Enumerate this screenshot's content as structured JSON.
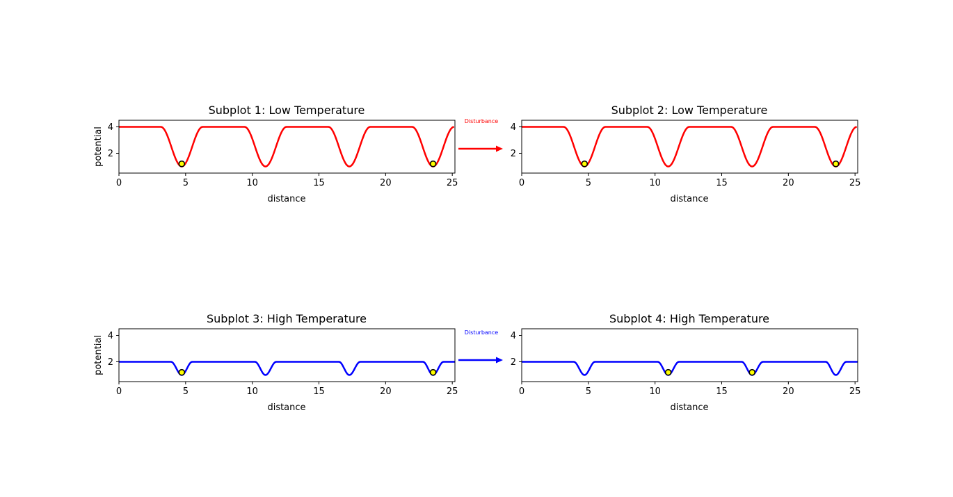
{
  "colors": {
    "low": "#ff0000",
    "high": "#0000ff",
    "marker_fill": "#ffff00",
    "marker_edge": "#000000"
  },
  "chart_data": [
    {
      "type": "line",
      "title": "Subplot 1: Low Temperature",
      "xlabel": "distance",
      "ylabel": "potential",
      "xlim": [
        0,
        25.2
      ],
      "ylim": [
        0.5,
        4.5
      ],
      "xticks": [
        "0",
        "5",
        "10",
        "15",
        "20",
        "25"
      ],
      "yticks": [
        "2",
        "4"
      ],
      "series": [
        {
          "color": "#ff0000",
          "x": [
            0,
            3.14,
            4.71,
            6.28,
            9.42,
            10.99,
            12.57,
            15.71,
            17.28,
            18.85,
            21.99,
            23.56,
            25.13
          ],
          "y": [
            4,
            4,
            1,
            4,
            4,
            1,
            4,
            4,
            1,
            4,
            4,
            1,
            4
          ],
          "shape": "cosine wells of depth 3 between flat plateaus"
        }
      ],
      "points": {
        "x": [
          4.71,
          23.56
        ],
        "y": [
          1.2,
          1.2
        ]
      },
      "grid": false
    },
    {
      "type": "line",
      "title": "Subplot 2: Low Temperature",
      "xlabel": "distance",
      "ylabel": "",
      "xlim": [
        0,
        25.2
      ],
      "ylim": [
        0.5,
        4.5
      ],
      "xticks": [
        "0",
        "5",
        "10",
        "15",
        "20",
        "25"
      ],
      "yticks": [
        "2",
        "4"
      ],
      "series": [
        {
          "color": "#ff0000",
          "x": [
            0,
            3.14,
            4.71,
            6.28,
            9.42,
            10.99,
            12.57,
            15.71,
            17.28,
            18.85,
            21.99,
            23.56,
            25.13
          ],
          "y": [
            4,
            4,
            1,
            4,
            4,
            1,
            4,
            4,
            1,
            4,
            4,
            1,
            4
          ],
          "shape": "cosine wells of depth 3 between flat plateaus"
        }
      ],
      "points": {
        "x": [
          4.71,
          23.56
        ],
        "y": [
          1.2,
          1.2
        ]
      },
      "grid": false
    },
    {
      "type": "line",
      "title": "Subplot 3: High Temperature",
      "xlabel": "distance",
      "ylabel": "potential",
      "xlim": [
        0,
        25.2
      ],
      "ylim": [
        0.5,
        4.5
      ],
      "xticks": [
        "0",
        "5",
        "10",
        "15",
        "20",
        "25"
      ],
      "yticks": [
        "2",
        "4"
      ],
      "series": [
        {
          "color": "#0000ff",
          "x": [
            0,
            3.9,
            4.71,
            5.5,
            10.2,
            10.99,
            11.8,
            16.5,
            17.28,
            18.1,
            22.8,
            23.56,
            24.35,
            25.2
          ],
          "y": [
            2,
            2,
            1,
            2,
            2,
            1,
            2,
            2,
            1,
            2,
            2,
            1,
            2,
            2
          ],
          "shape": "narrow cosine wells of depth 1 between flat plateaus"
        }
      ],
      "points": {
        "x": [
          4.71,
          23.56
        ],
        "y": [
          1.2,
          1.2
        ]
      },
      "grid": false
    },
    {
      "type": "line",
      "title": "Subplot 4: High Temperature",
      "xlabel": "distance",
      "ylabel": "",
      "xlim": [
        0,
        25.2
      ],
      "ylim": [
        0.5,
        4.5
      ],
      "xticks": [
        "0",
        "5",
        "10",
        "15",
        "20",
        "25"
      ],
      "yticks": [
        "2",
        "4"
      ],
      "series": [
        {
          "color": "#0000ff",
          "x": [
            0,
            3.9,
            4.71,
            5.5,
            10.2,
            10.99,
            11.8,
            16.5,
            17.28,
            18.1,
            22.8,
            23.56,
            24.35,
            25.2
          ],
          "y": [
            2,
            2,
            1,
            2,
            2,
            1,
            2,
            2,
            1,
            2,
            2,
            1,
            2,
            2
          ],
          "shape": "narrow cosine wells of depth 1 between flat plateaus"
        }
      ],
      "points": {
        "x": [
          10.99,
          17.28
        ],
        "y": [
          1.2,
          1.2
        ]
      },
      "grid": false
    }
  ],
  "annotations": [
    {
      "text": "Disturbance",
      "color": "#ff0000"
    },
    {
      "text": "Disturbance",
      "color": "#0000ff"
    }
  ]
}
